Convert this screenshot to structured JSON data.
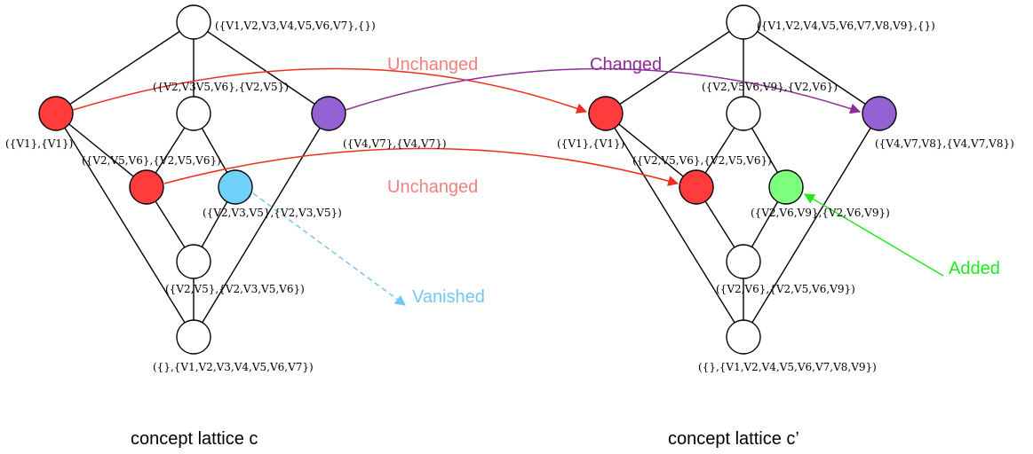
{
  "colors": {
    "red": "#ff3b3b",
    "purple": "#9461d2",
    "cyan": "#6fd1f8",
    "green": "#7dff7d",
    "white": "#ffffff",
    "unchanged_arrow": "#ee2e1e",
    "unchanged_text": "#f08080",
    "changed": "#8e2e96",
    "vanished": "#72c8f3",
    "added": "#22e822"
  },
  "lattice_c": {
    "caption": "concept lattice c",
    "nodes": {
      "top": {
        "label": "({V1,V2,V3,V4,V5,V6,V7},{})"
      },
      "left": {
        "label": "({V1},{V1})"
      },
      "mid": {
        "label": "({V2,V3V5,V6},{V2,V5})"
      },
      "right": {
        "label": "({V4,V7},{V4,V7})"
      },
      "red2": {
        "label": "({V2,V5,V6},{V2,V5,V6})"
      },
      "cyan": {
        "label": "({V2,V3,V5},{V2,V3,V5})"
      },
      "low": {
        "label": "({V2,V5},{V2,V3,V5,V6})"
      },
      "bottom": {
        "label": "({},{V1,V2,V3,V4,V5,V6,V7})"
      }
    }
  },
  "lattice_c_prime": {
    "caption": "concept lattice c’",
    "nodes": {
      "top": {
        "label": "({V1,V2,V4,V5,V6,V7,V8,V9},{})"
      },
      "left": {
        "label": "({V1},{V1})"
      },
      "mid": {
        "label": "({V2,V5V6,V9},{V2,V6})"
      },
      "right": {
        "label": "({V4,V7,V8},{V4,V7,V8})"
      },
      "red2": {
        "label": "({V2,V5,V6},{V2,V5,V6})"
      },
      "green": {
        "label": "({V2,V6,V9},{V2,V6,V9})"
      },
      "low": {
        "label": "({V2,V6},{V2,V5,V6,V9})"
      },
      "bottom": {
        "label": "({},{V1,V2,V4,V5,V6,V7,V8,V9})"
      }
    }
  },
  "annotations": {
    "unchanged_top": "Unchanged",
    "changed": "Changed",
    "unchanged_mid": "Unchanged",
    "vanished": "Vanished",
    "added": "Added"
  }
}
